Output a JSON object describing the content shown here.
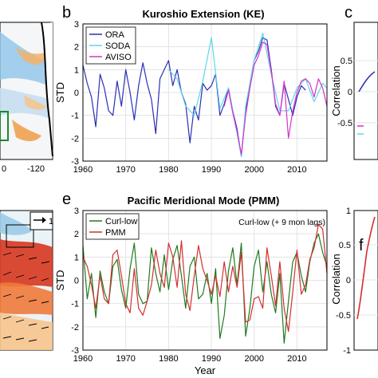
{
  "panels": {
    "a": {
      "lon_tick_labels": [
        "0",
        "-120"
      ]
    },
    "b": {
      "letter": "b"
    },
    "c": {
      "letter": "c",
      "ylabel": "Correlation",
      "tick_labels": [
        "0.5",
        "0",
        "-0.5"
      ]
    },
    "d": {
      "vector_key": "1"
    },
    "e": {
      "letter": "e"
    },
    "f": {
      "letter": "f",
      "ylabel": "Correlation",
      "tick_labels": [
        "1",
        "0.5",
        "0",
        "-0.5",
        "-1"
      ]
    }
  },
  "chart_data": [
    {
      "panel": "b",
      "type": "line",
      "title": "Kuroshio Extension (KE)",
      "xlabel": "",
      "ylabel": "STD",
      "xlim": [
        1960,
        2017
      ],
      "ylim": [
        -3,
        3
      ],
      "x_ticks": [
        1960,
        1970,
        1980,
        1990,
        2000,
        2010
      ],
      "y_ticks": [
        3,
        2,
        1,
        0,
        -1,
        -2,
        -3
      ],
      "grid": true,
      "legend_position": "top-left",
      "series": [
        {
          "name": "ORA",
          "color": "#2a2fb5",
          "x": [
            1960,
            1961,
            1962,
            1963,
            1964,
            1965,
            1966,
            1967,
            1968,
            1969,
            1970,
            1971,
            1972,
            1973,
            1974,
            1975,
            1976,
            1977,
            1978,
            1979,
            1980,
            1981,
            1982,
            1983,
            1984,
            1985,
            1986,
            1987,
            1988,
            1989,
            1990,
            1991,
            1992,
            1993,
            1994,
            1995,
            1996,
            1997,
            1998,
            1999,
            2000,
            2001,
            2002,
            2003,
            2004,
            2005,
            2006,
            2007,
            2008,
            2009,
            2010,
            2011,
            2012
          ],
          "values": [
            1.2,
            0.4,
            -0.2,
            -1.5,
            0.8,
            0.2,
            -0.8,
            -1.0,
            0.5,
            -0.6,
            1.0,
            0.0,
            -1.2,
            0.3,
            1.3,
            0.4,
            -0.3,
            -1.8,
            0.6,
            1.0,
            1.4,
            0.3,
            1.0,
            0.0,
            -0.5,
            -2.2,
            -0.6,
            -1.2,
            0.4,
            0.1,
            0.3,
            0.8,
            -1.0,
            -0.5,
            0.2,
            -0.8,
            -1.6,
            -2.8,
            -0.8,
            0.4,
            1.4,
            1.8,
            2.4,
            2.3,
            1.0,
            -0.6,
            -1.0,
            0.4,
            -0.3,
            -1.0,
            -0.2,
            0.3,
            0.1
          ]
        },
        {
          "name": "SODA",
          "color": "#5fd6e8",
          "x": [
            1980,
            1982,
            1984,
            1986,
            1988,
            1990,
            1992,
            1994,
            1996,
            1997,
            1998,
            2000,
            2002,
            2004,
            2006,
            2008,
            2010,
            2012,
            2014,
            2016,
            2017
          ],
          "values": [
            1.0,
            0.6,
            -0.6,
            -1.0,
            0.5,
            2.4,
            -0.7,
            0.2,
            -1.8,
            -2.8,
            -0.6,
            1.4,
            2.6,
            0.8,
            -0.8,
            -0.8,
            0.2,
            0.6,
            -0.4,
            0.4,
            0.2
          ]
        },
        {
          "name": "AVISO",
          "color": "#d633c8",
          "x": [
            1993,
            1994,
            1995,
            1996,
            1997,
            1998,
            1999,
            2000,
            2001,
            2002,
            2003,
            2004,
            2005,
            2006,
            2007,
            2008,
            2009,
            2010,
            2011,
            2012,
            2013,
            2014,
            2015,
            2016,
            2017
          ],
          "values": [
            -0.6,
            0.1,
            -0.9,
            -1.7,
            -2.7,
            -1.0,
            0.2,
            1.2,
            1.6,
            2.2,
            2.1,
            0.9,
            -0.5,
            -1.0,
            0.5,
            -2.0,
            -0.8,
            0.0,
            0.5,
            0.6,
            0.4,
            -0.2,
            0.6,
            0.2,
            -0.6
          ]
        }
      ]
    },
    {
      "panel": "e",
      "type": "line",
      "title": "Pacific Meridional Mode (PMM)",
      "xlabel": "Year",
      "ylabel": "STD",
      "xlim": [
        1960,
        2017
      ],
      "ylim": [
        -3,
        3
      ],
      "x_ticks": [
        1960,
        1970,
        1980,
        1990,
        2000,
        2010
      ],
      "y_ticks": [
        3,
        2,
        1,
        0,
        -1,
        -2,
        -3
      ],
      "grid": true,
      "legend_position": "top-left",
      "annotation": "Curl-low (+ 9 mon lags)",
      "series": [
        {
          "name": "Curl-low",
          "color": "#1f7a1f",
          "x": [
            1960,
            1961,
            1962,
            1963,
            1964,
            1965,
            1966,
            1967,
            1968,
            1969,
            1970,
            1971,
            1972,
            1973,
            1974,
            1975,
            1976,
            1977,
            1978,
            1979,
            1980,
            1981,
            1982,
            1983,
            1984,
            1985,
            1986,
            1987,
            1988,
            1989,
            1990,
            1991,
            1992,
            1993,
            1994,
            1995,
            1996,
            1997,
            1998,
            1999,
            2000,
            2001,
            2002,
            2003,
            2004,
            2005,
            2006,
            2007,
            2008,
            2009,
            2010,
            2011,
            2012,
            2013,
            2014,
            2015,
            2016,
            2017
          ],
          "values": [
            1.5,
            -0.8,
            0.3,
            -1.6,
            0.4,
            -0.5,
            -1.0,
            0.6,
            0.9,
            -0.4,
            -1.2,
            0.5,
            1.6,
            -0.6,
            -1.0,
            -0.9,
            1.4,
            0.3,
            -0.5,
            1.1,
            -0.4,
            0.9,
            1.5,
            0.2,
            -1.2,
            0.6,
            1.0,
            -0.8,
            -0.6,
            0.3,
            -1.0,
            0.5,
            -2.5,
            -1.5,
            0.4,
            1.4,
            -0.2,
            1.6,
            -2.4,
            -1.2,
            0.6,
            1.3,
            -0.5,
            0.8,
            -0.6,
            -1.4,
            0.3,
            -2.7,
            -0.9,
            0.8,
            1.2,
            0.2,
            -0.5,
            0.8,
            1.6,
            2.0,
            1.2,
            0.6
          ]
        },
        {
          "name": "PMM",
          "color": "#d32f2f",
          "x": [
            1960,
            1961,
            1962,
            1963,
            1964,
            1965,
            1966,
            1967,
            1968,
            1969,
            1970,
            1971,
            1972,
            1973,
            1974,
            1975,
            1976,
            1977,
            1978,
            1979,
            1980,
            1981,
            1982,
            1983,
            1984,
            1985,
            1986,
            1987,
            1988,
            1989,
            1990,
            1991,
            1992,
            1993,
            1994,
            1995,
            1996,
            1997,
            1998,
            1999,
            2000,
            2001,
            2002,
            2003,
            2004,
            2005,
            2006,
            2007,
            2008,
            2009,
            2010,
            2011,
            2012,
            2013,
            2014,
            2015,
            2016,
            2017
          ],
          "values": [
            1.0,
            0.6,
            -0.2,
            -1.2,
            0.2,
            -0.8,
            -1.0,
            1.1,
            1.3,
            0.2,
            -1.0,
            -1.4,
            0.5,
            -1.2,
            -1.5,
            -0.9,
            -0.2,
            1.3,
            0.3,
            -0.3,
            1.6,
            1.0,
            -0.3,
            1.7,
            -0.6,
            -1.3,
            0.2,
            1.5,
            0.5,
            0.0,
            -0.6,
            0.2,
            -0.7,
            0.8,
            -0.5,
            0.6,
            -0.3,
            1.2,
            -1.8,
            -1.7,
            -0.8,
            -0.7,
            -1.2,
            1.4,
            0.2,
            -1.1,
            0.8,
            -1.2,
            -2.2,
            -0.5,
            1.3,
            -0.6,
            -0.2,
            0.9,
            1.4,
            2.4,
            2.2,
            0.3
          ]
        }
      ]
    }
  ]
}
